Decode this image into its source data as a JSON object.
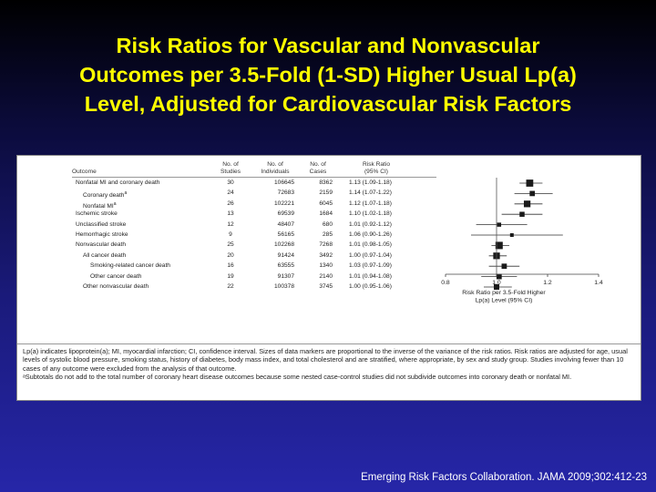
{
  "title": "Risk Ratios for Vascular and Nonvascular\nOutcomes per 3.5-Fold (1-SD) Higher Usual Lp(a)\nLevel, Adjusted for Cardiovascular Risk Factors",
  "citation": "Emerging Risk Factors Collaboration. JAMA 2009;302:412-23",
  "table": {
    "headers": {
      "outcome": "Outcome",
      "studies": "No. of\nStudies",
      "individuals": "No. of\nIndividuals",
      "cases": "No. of\nCases",
      "rr": "Risk Ratio\n(95% CI)"
    }
  },
  "chart_data": {
    "type": "forest",
    "reference_line": 1.0,
    "xlim": [
      0.8,
      1.4
    ],
    "xticks": [
      "0.8",
      "1.0",
      "1.2",
      "1.4"
    ],
    "xlabel": "Risk Ratio per 3.5-Fold Higher\nLp(a) Level (95% CI)",
    "rows": [
      {
        "outcome": "Nonfatal MI and coronary death",
        "indent": 0,
        "studies": "30",
        "individuals": "106645",
        "cases": "8362",
        "rr_text": "1.13 (1.09-1.18)",
        "rr": 1.13,
        "lo": 1.09,
        "hi": 1.18,
        "weight": 0.95
      },
      {
        "outcome": "Coronary death",
        "sup": "a",
        "indent": 1,
        "studies": "24",
        "individuals": "72683",
        "cases": "2159",
        "rr_text": "1.14 (1.07-1.22)",
        "rr": 1.14,
        "lo": 1.07,
        "hi": 1.22,
        "weight": 0.55
      },
      {
        "outcome": "Nonfatal MI",
        "sup": "a",
        "indent": 1,
        "studies": "26",
        "individuals": "102221",
        "cases": "6045",
        "rr_text": "1.12 (1.07-1.18)",
        "rr": 1.12,
        "lo": 1.07,
        "hi": 1.18,
        "weight": 0.85
      },
      {
        "outcome": "Ischemic stroke",
        "indent": 0,
        "studies": "13",
        "individuals": "69539",
        "cases": "1684",
        "rr_text": "1.10 (1.02-1.18)",
        "rr": 1.1,
        "lo": 1.02,
        "hi": 1.18,
        "weight": 0.5
      },
      {
        "outcome": "Unclassified stroke",
        "indent": 0,
        "studies": "12",
        "individuals": "48407",
        "cases": "680",
        "rr_text": "1.01 (0.92-1.12)",
        "rr": 1.01,
        "lo": 0.92,
        "hi": 1.12,
        "weight": 0.3
      },
      {
        "outcome": "Hemorrhagic stroke",
        "indent": 0,
        "studies": "9",
        "individuals": "56165",
        "cases": "285",
        "rr_text": "1.06 (0.90-1.26)",
        "rr": 1.06,
        "lo": 0.9,
        "hi": 1.26,
        "weight": 0.2
      },
      {
        "outcome": "Nonvascular death",
        "indent": 0,
        "studies": "25",
        "individuals": "102268",
        "cases": "7268",
        "rr_text": "1.01 (0.98-1.05)",
        "rr": 1.01,
        "lo": 0.98,
        "hi": 1.05,
        "weight": 1.0
      },
      {
        "outcome": "All cancer death",
        "indent": 1,
        "studies": "20",
        "individuals": "91424",
        "cases": "3492",
        "rr_text": "1.00 (0.97-1.04)",
        "rr": 1.0,
        "lo": 0.97,
        "hi": 1.04,
        "weight": 0.85
      },
      {
        "outcome": "Smoking-related cancer death",
        "indent": 2,
        "studies": "16",
        "individuals": "63555",
        "cases": "1340",
        "rr_text": "1.03 (0.97-1.09)",
        "rr": 1.03,
        "lo": 0.97,
        "hi": 1.09,
        "weight": 0.55
      },
      {
        "outcome": "Other cancer death",
        "indent": 2,
        "studies": "19",
        "individuals": "91307",
        "cases": "2140",
        "rr_text": "1.01 (0.94-1.08)",
        "rr": 1.01,
        "lo": 0.94,
        "hi": 1.08,
        "weight": 0.55
      },
      {
        "outcome": "Other nonvascular death",
        "indent": 1,
        "studies": "22",
        "individuals": "100378",
        "cases": "3745",
        "rr_text": "1.00 (0.95-1.06)",
        "rr": 1.0,
        "lo": 0.95,
        "hi": 1.06,
        "weight": 0.6
      }
    ]
  },
  "notes": [
    "Lp(a) indicates lipoprotein(a); MI, myocardial infarction; CI, confidence interval. Sizes of data markers are proportional to the inverse of the variance of the risk ratios. Risk ratios are adjusted for age, usual levels of systolic blood pressure, smoking status, history of diabetes, body mass index, and total cholesterol and are stratified, where appropriate, by sex and study group. Studies involving fewer than 10 cases of any outcome were excluded from the analysis of that outcome.",
    "ᵃSubtotals do not add to the total number of coronary heart disease outcomes because some nested case-control studies did not subdivide outcomes into coronary death or nonfatal MI."
  ],
  "colors": {
    "title": "#ffff00",
    "citation": "#ffffff",
    "marker": "#1a1a1a"
  }
}
